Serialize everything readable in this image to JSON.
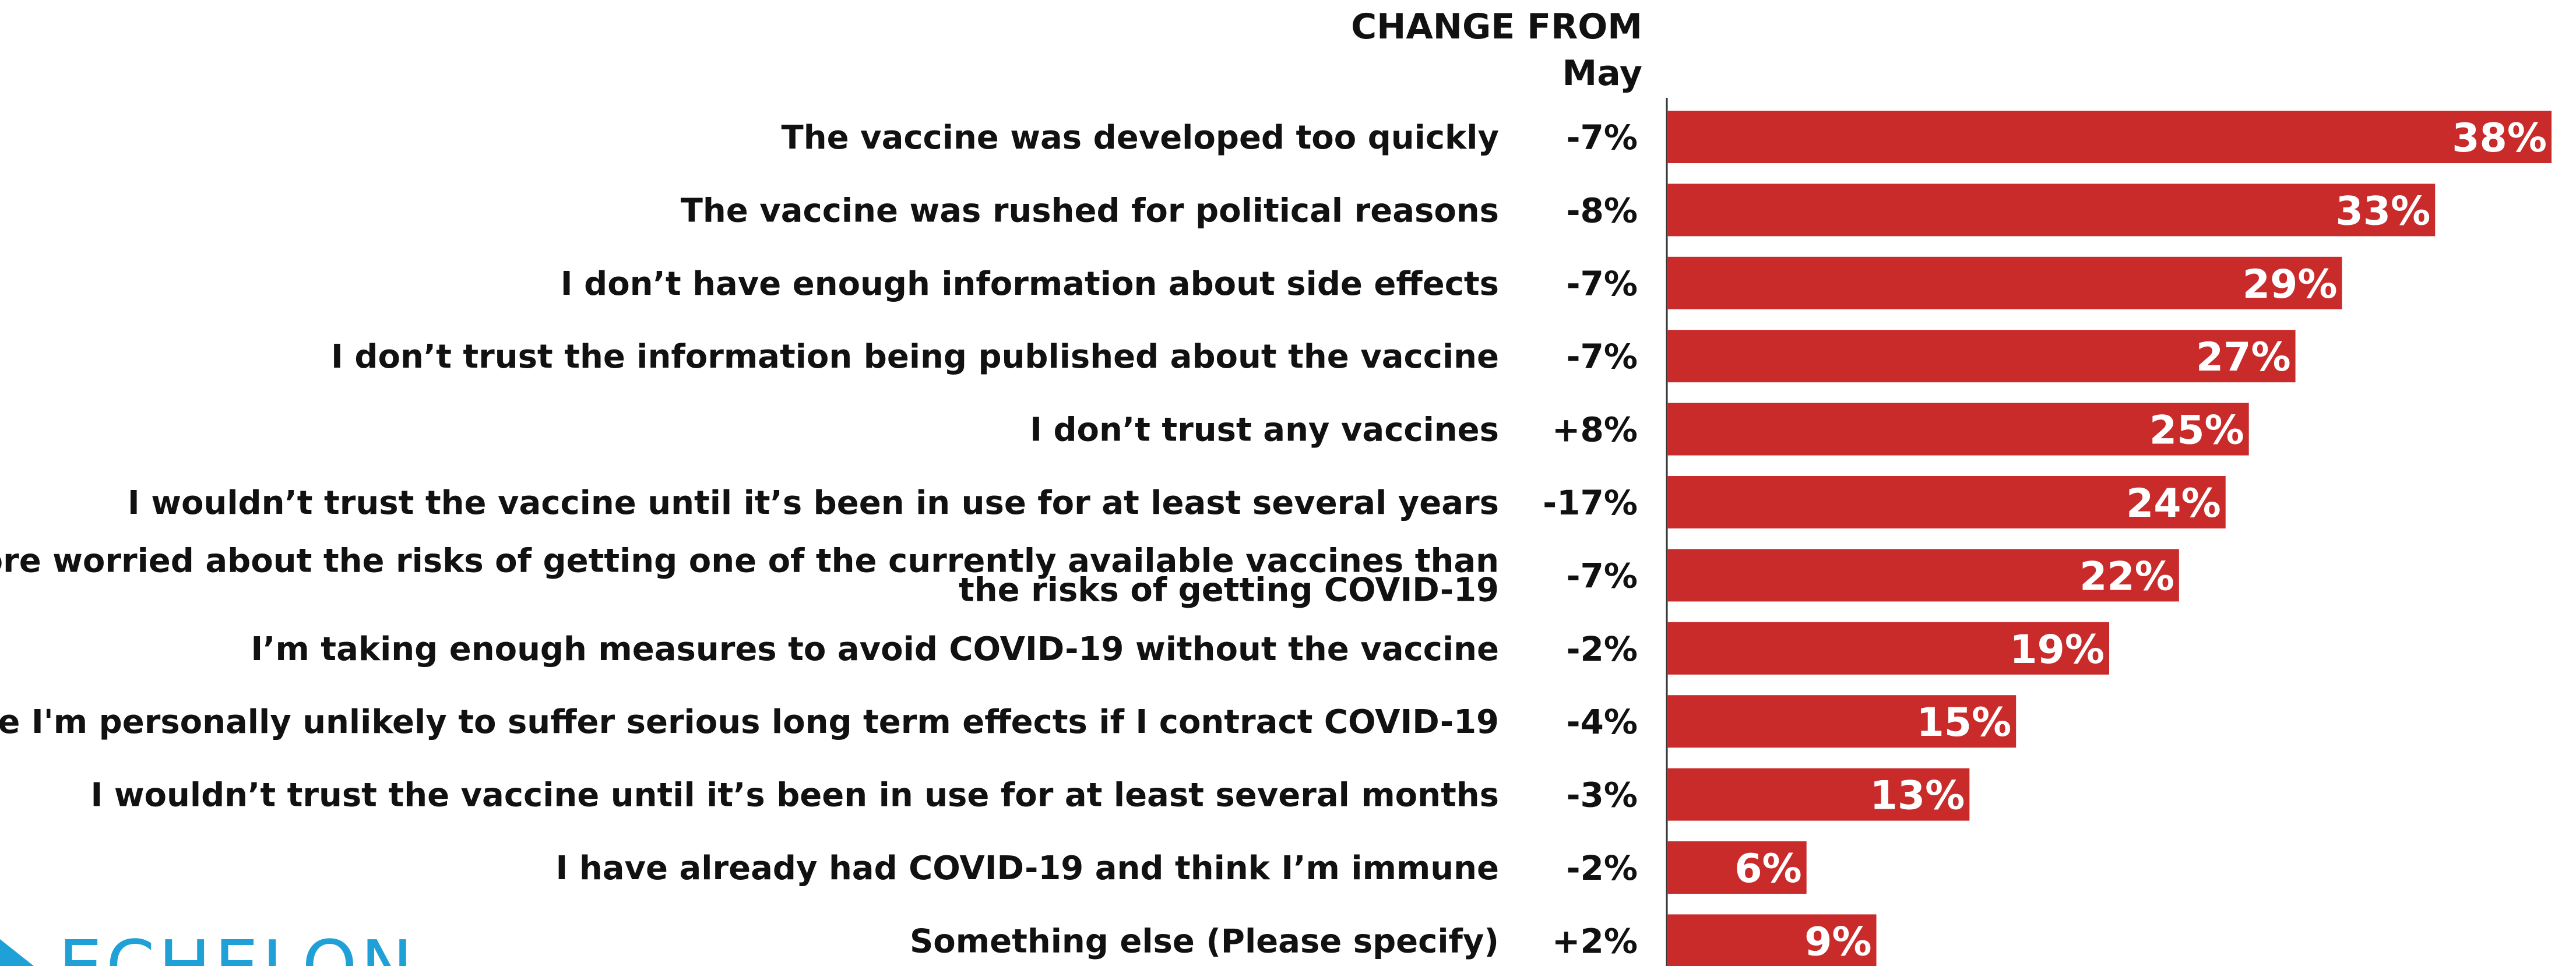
{
  "header": {
    "line1": "CHANGE FROM",
    "line2": "May"
  },
  "logo": {
    "text": "ECHELON",
    "color": "#1fa0d6"
  },
  "chart_data": {
    "type": "bar",
    "orientation": "horizontal",
    "bar_color": "#c92a2a",
    "xlim": [
      0,
      38
    ],
    "grid": false,
    "categories": [
      [
        "The vaccine was developed too quickly"
      ],
      [
        "The vaccine was rushed for political reasons"
      ],
      [
        "I don’t have enough information about side effects"
      ],
      [
        "I don’t trust the information being published about the vaccine"
      ],
      [
        "I don’t trust any vaccines"
      ],
      [
        "I wouldn’t trust the vaccine until it’s been in use for at least several years"
      ],
      [
        "I am more worried about the risks of getting one of the currently available vaccines than",
        "the risks of getting COVID-19"
      ],
      [
        "I’m taking enough measures to avoid COVID-19 without the vaccine"
      ],
      [
        "I believe I'm personally unlikely to suffer serious long term effects if I contract COVID-19"
      ],
      [
        "I wouldn’t trust the vaccine until it’s been in use for at least several months"
      ],
      [
        "I have already had COVID-19 and think I’m immune"
      ],
      [
        "Something else (Please specify)"
      ]
    ],
    "values": [
      38,
      33,
      29,
      27,
      25,
      24,
      22,
      19,
      15,
      13,
      6,
      9
    ],
    "value_labels": [
      "38%",
      "33%",
      "29%",
      "27%",
      "25%",
      "24%",
      "22%",
      "19%",
      "15%",
      "13%",
      "6%",
      "9%"
    ],
    "change_from_may": [
      "-7%",
      "-8%",
      "-7%",
      "-7%",
      "+8%",
      "-17%",
      "-7%",
      "-2%",
      "-4%",
      "-3%",
      "-2%",
      "+2%"
    ]
  }
}
